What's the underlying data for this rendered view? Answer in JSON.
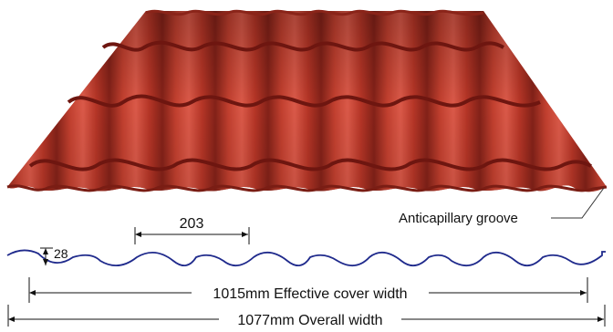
{
  "colors": {
    "tile_base": "#b8372a",
    "tile_shadow": "#7a1d14",
    "tile_highlight": "#d9584a",
    "step_line": "#6e1610",
    "profile_line": "#1f2a8c",
    "dimension_line": "#111111"
  },
  "annotations": {
    "anticapillary_groove": "Anticapillary groove",
    "pitch": "203",
    "height": "28",
    "effective_width": "1015mm Effective cover width",
    "overall_width": "1077mm Overall width"
  }
}
